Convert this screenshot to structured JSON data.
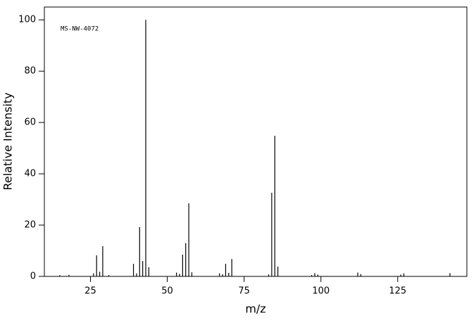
{
  "chart_data": {
    "type": "stick",
    "annotation": "MS-NW-4072",
    "x_label": "m/z",
    "y_label": "Relative Intensity",
    "color": "#000000",
    "x": [
      15,
      18,
      26,
      27,
      28,
      29,
      31,
      39,
      40,
      41,
      42,
      43,
      44,
      53,
      54,
      55,
      56,
      57,
      58,
      67,
      68,
      69,
      70,
      71,
      83,
      84,
      85,
      86,
      97,
      98,
      99,
      112,
      113,
      126,
      127,
      142
    ],
    "values": [
      0.5,
      0.6,
      1.2,
      8.2,
      1.8,
      11.8,
      0.5,
      4.9,
      1.2,
      19.2,
      6,
      100,
      3.6,
      1.5,
      1.0,
      8.5,
      13,
      28.5,
      1.6,
      1.2,
      0.8,
      4.9,
      1.4,
      6.8,
      0.8,
      32.6,
      54.8,
      3.8,
      0.5,
      1.3,
      0.7,
      1.5,
      0.9,
      0.7,
      1.2,
      1.3
    ],
    "xlim": [
      10,
      147.5
    ],
    "ylim": [
      0,
      105
    ],
    "xticks": [
      25,
      50,
      75,
      100,
      125
    ],
    "yticks": [
      0,
      20,
      40,
      60,
      80,
      100
    ]
  }
}
